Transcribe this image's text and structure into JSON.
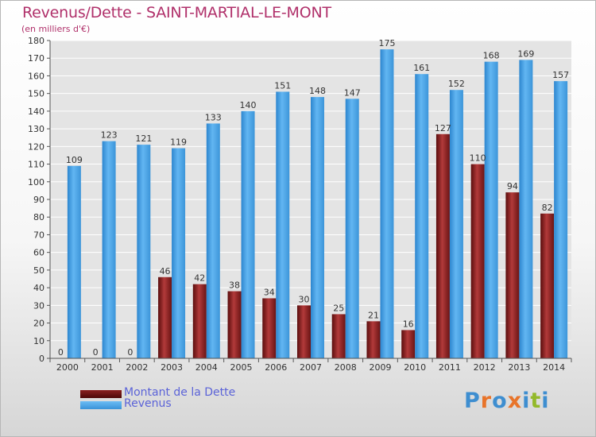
{
  "title": "Revenus/Dette - SAINT-MARTIAL-LE-MONT",
  "subtitle": "(en milliers d'€)",
  "logo": {
    "text": "Proxiti",
    "letters": [
      {
        "ch": "P",
        "color": "#3e8ed0"
      },
      {
        "ch": "r",
        "color": "#e8742a"
      },
      {
        "ch": "o",
        "color": "#3e8ed0"
      },
      {
        "ch": "x",
        "color": "#e8742a"
      },
      {
        "ch": "i",
        "color": "#3e8ed0"
      },
      {
        "ch": "t",
        "color": "#93b92a"
      },
      {
        "ch": "i",
        "color": "#3e8ed0"
      }
    ]
  },
  "chart_data": {
    "type": "bar",
    "categories": [
      "2000",
      "2001",
      "2002",
      "2003",
      "2004",
      "2005",
      "2006",
      "2007",
      "2008",
      "2009",
      "2010",
      "2011",
      "2012",
      "2013",
      "2014"
    ],
    "series": [
      {
        "name": "Montant de la Dette",
        "color": "#7a1a1a",
        "values": [
          0,
          0,
          0,
          46,
          42,
          38,
          34,
          30,
          25,
          21,
          16,
          127,
          110,
          94,
          82
        ]
      },
      {
        "name": "Revenus",
        "color": "#4aa3e6",
        "values": [
          109,
          123,
          121,
          119,
          133,
          140,
          151,
          148,
          147,
          175,
          161,
          152,
          168,
          169,
          157
        ]
      }
    ],
    "ylim": [
      0,
      180
    ],
    "yticks": [
      0,
      10,
      20,
      30,
      40,
      50,
      60,
      70,
      80,
      90,
      100,
      110,
      120,
      130,
      140,
      150,
      160,
      170,
      180
    ],
    "grid": true,
    "legend_position": "bottom-left"
  },
  "colors": {
    "title": "#b0306a",
    "legend_text": "#5b63d8",
    "grid": "#ffffff",
    "axis": "#555555"
  }
}
